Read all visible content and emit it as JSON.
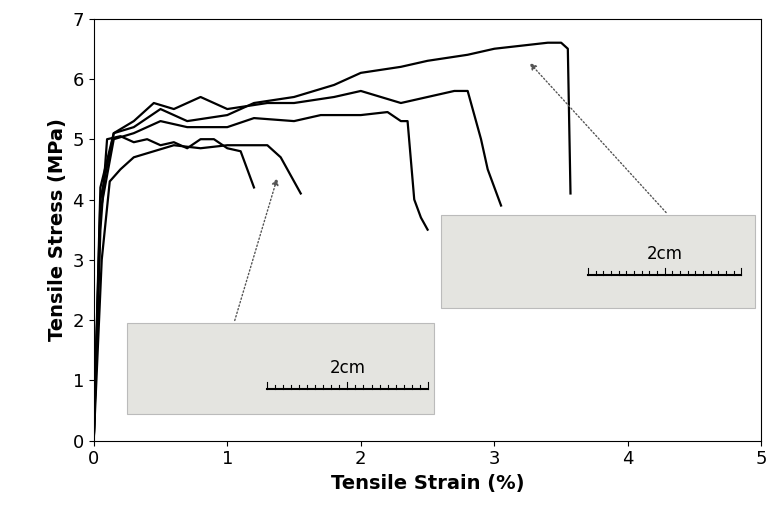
{
  "chart_data": {
    "type": "line",
    "x_label": "Tensile Strain (%)",
    "y_label": "Tensile Stress (MPa)",
    "xlim": [
      0,
      5
    ],
    "xticks": [
      0,
      1,
      2,
      3,
      4,
      5
    ],
    "ylim": [
      0,
      7
    ],
    "yticks": [
      0,
      1,
      2,
      3,
      4,
      5,
      6,
      7
    ],
    "grid": false,
    "annotations": [
      {
        "text": "2cm"
      },
      {
        "text": "2cm"
      }
    ],
    "series": [
      {
        "color": "#000000",
        "x": [
          0,
          0.05,
          0.1,
          0.2,
          0.3,
          0.4,
          0.5,
          0.6,
          0.7,
          0.8,
          0.9,
          1.0,
          1.1,
          1.15,
          1.2
        ],
        "values": [
          0,
          3.5,
          5.0,
          5.05,
          4.95,
          5.0,
          4.9,
          4.95,
          4.85,
          5.0,
          5.0,
          4.85,
          4.8,
          4.5,
          4.2
        ]
      },
      {
        "color": "#000000",
        "x": [
          0,
          0.06,
          0.12,
          0.2,
          0.3,
          0.45,
          0.6,
          0.8,
          1.0,
          1.15,
          1.3,
          1.4,
          1.45,
          1.5,
          1.55
        ],
        "values": [
          0,
          3.0,
          4.3,
          4.5,
          4.7,
          4.8,
          4.9,
          4.85,
          4.9,
          4.9,
          4.9,
          4.7,
          4.5,
          4.3,
          4.1
        ]
      },
      {
        "color": "#000000",
        "x": [
          0,
          0.05,
          0.15,
          0.3,
          0.5,
          0.7,
          1.0,
          1.2,
          1.5,
          1.7,
          2.0,
          2.2,
          2.3,
          2.35,
          2.4,
          2.45,
          2.5
        ],
        "values": [
          0,
          3.8,
          5.0,
          5.1,
          5.3,
          5.2,
          5.2,
          5.35,
          5.3,
          5.4,
          5.4,
          5.45,
          5.3,
          5.3,
          4.0,
          3.7,
          3.5
        ]
      },
      {
        "color": "#000000",
        "x": [
          0,
          0.05,
          0.15,
          0.3,
          0.45,
          0.6,
          0.8,
          1.0,
          1.3,
          1.5,
          1.8,
          2.0,
          2.3,
          2.5,
          2.7,
          2.8,
          2.9,
          2.95,
          3.05
        ],
        "values": [
          0,
          4.0,
          5.1,
          5.3,
          5.6,
          5.5,
          5.7,
          5.5,
          5.6,
          5.6,
          5.7,
          5.8,
          5.6,
          5.7,
          5.8,
          5.8,
          5.0,
          4.5,
          3.9
        ]
      },
      {
        "color": "#000000",
        "x": [
          0,
          0.05,
          0.15,
          0.3,
          0.5,
          0.7,
          1.0,
          1.2,
          1.5,
          1.8,
          2.0,
          2.3,
          2.5,
          2.8,
          3.0,
          3.2,
          3.4,
          3.5,
          3.55,
          3.57
        ],
        "values": [
          0,
          4.2,
          5.1,
          5.2,
          5.5,
          5.3,
          5.4,
          5.6,
          5.7,
          5.9,
          6.1,
          6.2,
          6.3,
          6.4,
          6.5,
          6.55,
          6.6,
          6.6,
          6.5,
          4.1
        ]
      }
    ]
  }
}
